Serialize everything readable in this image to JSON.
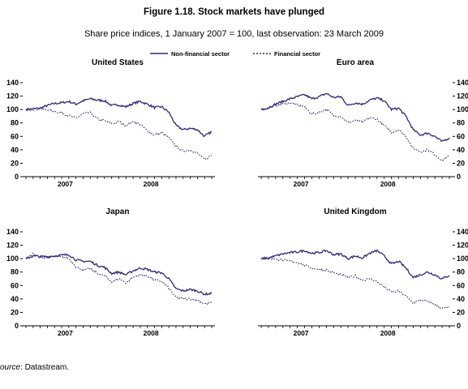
{
  "title": "Figure 1.18. Stock markets have plunged",
  "subtitle": "Share price indices, 1 January 2007 = 100, last observation: 23 March 2009",
  "legend": [
    {
      "label": "Non-financial sector",
      "style": "solid"
    },
    {
      "label": "Financial sector",
      "style": "dotted"
    }
  ],
  "source": {
    "label": "ource",
    "text": ": Datastream."
  },
  "colors": {
    "line": "#2b2a7a",
    "axis": "#000000"
  },
  "chart_data": [
    {
      "type": "line",
      "title": "United States",
      "y_axis_side": "left",
      "ylim": [
        0,
        140
      ],
      "yticks": [
        0,
        20,
        40,
        60,
        80,
        100,
        120,
        140
      ],
      "year_labels": [
        "2007",
        "2008"
      ],
      "x": [
        "2007-01",
        "2007-02",
        "2007-03",
        "2007-04",
        "2007-05",
        "2007-06",
        "2007-07",
        "2007-08",
        "2007-09",
        "2007-10",
        "2007-11",
        "2007-12",
        "2008-01",
        "2008-02",
        "2008-03",
        "2008-04",
        "2008-05",
        "2008-06",
        "2008-07",
        "2008-08",
        "2008-09",
        "2008-10",
        "2008-11",
        "2008-12",
        "2009-01",
        "2009-02",
        "2009-03"
      ],
      "series": [
        {
          "name": "Non-financial sector",
          "style": "solid",
          "values": [
            100,
            101,
            102,
            106,
            109,
            110,
            112,
            108,
            113,
            116,
            114,
            113,
            106,
            107,
            104,
            109,
            112,
            108,
            103,
            104,
            96,
            76,
            70,
            72,
            70,
            60,
            67
          ]
        },
        {
          "name": "Financial sector",
          "style": "dotted",
          "values": [
            100,
            100,
            101,
            100,
            97,
            95,
            91,
            87,
            94,
            95,
            86,
            83,
            79,
            82,
            76,
            82,
            78,
            68,
            62,
            66,
            58,
            45,
            38,
            40,
            35,
            25,
            32
          ]
        }
      ]
    },
    {
      "type": "line",
      "title": "Euro area",
      "y_axis_side": "right",
      "ylim": [
        0,
        140
      ],
      "yticks": [
        0,
        20,
        40,
        60,
        80,
        100,
        120,
        140
      ],
      "year_labels": [
        "2007",
        "2008"
      ],
      "x": [
        "2007-01",
        "2007-02",
        "2007-03",
        "2007-04",
        "2007-05",
        "2007-06",
        "2007-07",
        "2007-08",
        "2007-09",
        "2007-10",
        "2007-11",
        "2007-12",
        "2008-01",
        "2008-02",
        "2008-03",
        "2008-04",
        "2008-05",
        "2008-06",
        "2008-07",
        "2008-08",
        "2008-09",
        "2008-10",
        "2008-11",
        "2008-12",
        "2009-01",
        "2009-02",
        "2009-03"
      ],
      "series": [
        {
          "name": "Non-financial sector",
          "style": "solid",
          "values": [
            100,
            103,
            108,
            112,
            116,
            119,
            122,
            116,
            119,
            124,
            118,
            119,
            106,
            110,
            108,
            114,
            117,
            113,
            100,
            102,
            90,
            70,
            62,
            65,
            60,
            52,
            58
          ]
        },
        {
          "name": "Financial sector",
          "style": "dotted",
          "values": [
            100,
            102,
            106,
            108,
            110,
            107,
            104,
            93,
            96,
            100,
            91,
            90,
            80,
            84,
            81,
            88,
            86,
            76,
            66,
            70,
            60,
            42,
            37,
            40,
            33,
            24,
            32
          ]
        }
      ]
    },
    {
      "type": "line",
      "title": "Japan",
      "y_axis_side": "left",
      "ylim": [
        0,
        140
      ],
      "yticks": [
        0,
        20,
        40,
        60,
        80,
        100,
        120,
        140
      ],
      "year_labels": [
        "2007",
        "2008"
      ],
      "x": [
        "2007-01",
        "2007-02",
        "2007-03",
        "2007-04",
        "2007-05",
        "2007-06",
        "2007-07",
        "2007-08",
        "2007-09",
        "2007-10",
        "2007-11",
        "2007-12",
        "2008-01",
        "2008-02",
        "2008-03",
        "2008-04",
        "2008-05",
        "2008-06",
        "2008-07",
        "2008-08",
        "2008-09",
        "2008-10",
        "2008-11",
        "2008-12",
        "2009-01",
        "2009-02",
        "2009-03"
      ],
      "series": [
        {
          "name": "Non-financial sector",
          "style": "solid",
          "values": [
            100,
            104,
            103,
            103,
            104,
            105,
            106,
            98,
            96,
            96,
            90,
            87,
            78,
            80,
            76,
            82,
            86,
            84,
            80,
            79,
            70,
            55,
            52,
            54,
            52,
            47,
            48
          ]
        },
        {
          "name": "Financial sector",
          "style": "dotted",
          "values": [
            100,
            107,
            102,
            101,
            103,
            102,
            100,
            88,
            83,
            85,
            78,
            74,
            66,
            70,
            64,
            72,
            76,
            74,
            68,
            66,
            56,
            42,
            40,
            40,
            38,
            33,
            34
          ]
        }
      ]
    },
    {
      "type": "line",
      "title": "United Kingdom",
      "y_axis_side": "right",
      "ylim": [
        0,
        140
      ],
      "yticks": [
        0,
        20,
        40,
        60,
        80,
        100,
        120,
        140
      ],
      "year_labels": [
        "2007",
        "2008"
      ],
      "x": [
        "2007-01",
        "2007-02",
        "2007-03",
        "2007-04",
        "2007-05",
        "2007-06",
        "2007-07",
        "2007-08",
        "2007-09",
        "2007-10",
        "2007-11",
        "2007-12",
        "2008-01",
        "2008-02",
        "2008-03",
        "2008-04",
        "2008-05",
        "2008-06",
        "2008-07",
        "2008-08",
        "2008-09",
        "2008-10",
        "2008-11",
        "2008-12",
        "2009-01",
        "2009-02",
        "2009-03"
      ],
      "series": [
        {
          "name": "Non-financial sector",
          "style": "solid",
          "values": [
            100,
            101,
            104,
            107,
            109,
            110,
            112,
            108,
            109,
            112,
            106,
            107,
            100,
            104,
            101,
            108,
            112,
            104,
            92,
            96,
            86,
            72,
            76,
            80,
            76,
            70,
            75
          ]
        },
        {
          "name": "Financial sector",
          "style": "dotted",
          "values": [
            100,
            100,
            99,
            98,
            96,
            94,
            90,
            86,
            84,
            83,
            79,
            76,
            72,
            74,
            68,
            70,
            66,
            58,
            50,
            52,
            44,
            34,
            38,
            36,
            32,
            26,
            28
          ]
        }
      ]
    }
  ]
}
